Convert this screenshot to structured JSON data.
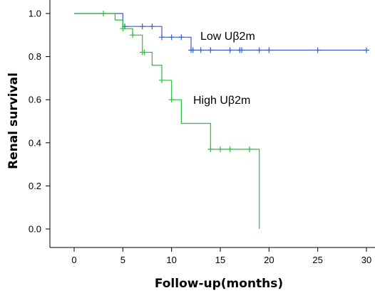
{
  "chart_data": {
    "type": "line",
    "subtype": "kaplan-meier",
    "xlabel": "Follow-up(months)",
    "ylabel": "Renal survival",
    "xlim": [
      0,
      30
    ],
    "ylim": [
      0,
      1.0
    ],
    "xticks": [
      "0",
      "5",
      "10",
      "15",
      "20",
      "25",
      "30"
    ],
    "yticks": [
      "0.0",
      "0.2",
      "0.4",
      "0.6",
      "0.8",
      "1.0"
    ],
    "grid": false,
    "series": [
      {
        "name": "Low Uβ2m",
        "color": "#3b5fc0",
        "steps": [
          [
            0,
            1.0
          ],
          [
            5,
            0.94
          ],
          [
            9,
            0.89
          ],
          [
            12,
            0.83
          ],
          [
            30,
            0.83
          ]
        ],
        "censored": [
          [
            5.2,
            0.94
          ],
          [
            7,
            0.94
          ],
          [
            8,
            0.94
          ],
          [
            9,
            0.89
          ],
          [
            10,
            0.89
          ],
          [
            11,
            0.89
          ],
          [
            12,
            0.83
          ],
          [
            12.2,
            0.83
          ],
          [
            13,
            0.83
          ],
          [
            14,
            0.83
          ],
          [
            16,
            0.83
          ],
          [
            17,
            0.83
          ],
          [
            17.2,
            0.83
          ],
          [
            19,
            0.83
          ],
          [
            20,
            0.83
          ],
          [
            25,
            0.83
          ],
          [
            30,
            0.83
          ]
        ]
      },
      {
        "name": "High Uβ2m",
        "color": "#22c33a",
        "steps": [
          [
            0,
            1.0
          ],
          [
            4.2,
            0.97
          ],
          [
            5,
            0.93
          ],
          [
            6,
            0.9
          ],
          [
            7,
            0.82
          ],
          [
            8,
            0.76
          ],
          [
            9,
            0.69
          ],
          [
            10,
            0.6
          ],
          [
            11,
            0.49
          ],
          [
            14,
            0.37
          ],
          [
            19,
            0.0
          ]
        ],
        "censored": [
          [
            3,
            1.0
          ],
          [
            5,
            0.93
          ],
          [
            6,
            0.9
          ],
          [
            7,
            0.82
          ],
          [
            7.2,
            0.82
          ],
          [
            9,
            0.69
          ],
          [
            10,
            0.6
          ],
          [
            14,
            0.37
          ],
          [
            15,
            0.37
          ],
          [
            16,
            0.37
          ],
          [
            18,
            0.37
          ]
        ]
      }
    ]
  }
}
